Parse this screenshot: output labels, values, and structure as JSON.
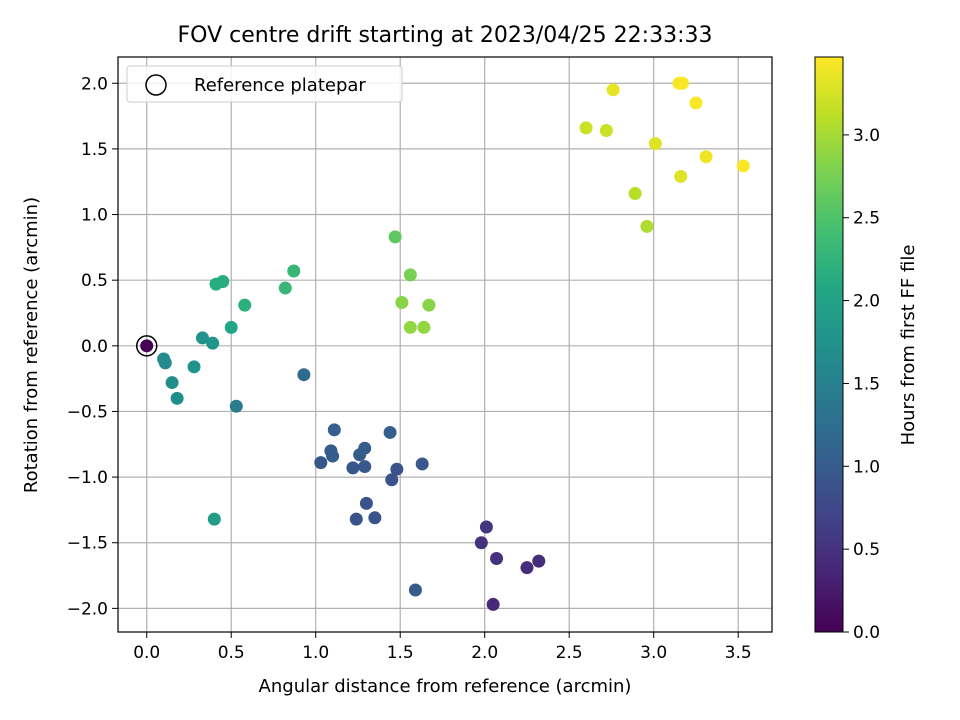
{
  "chart_data": {
    "type": "scatter",
    "title": "FOV centre drift starting at 2023/04/25 22:33:33",
    "xlabel": "Angular distance from reference (arcmin)",
    "ylabel": "Rotation from reference (arcmin)",
    "xlim": [
      -0.17,
      3.7
    ],
    "ylim": [
      -2.18,
      2.2
    ],
    "xticks": [
      "0.0",
      "0.5",
      "1.0",
      "1.5",
      "2.0",
      "2.5",
      "3.0",
      "3.5"
    ],
    "xtick_values": [
      0,
      0.5,
      1.0,
      1.5,
      2.0,
      2.5,
      3.0,
      3.5
    ],
    "yticks": [
      "2.0",
      "1.5",
      "1.0",
      "0.5",
      "0.0",
      "−0.5",
      "−1.0",
      "−1.5",
      "−2.0"
    ],
    "ytick_values": [
      2.0,
      1.5,
      1.0,
      0.5,
      0.0,
      -0.5,
      -1.0,
      -1.5,
      -2.0
    ],
    "grid": true,
    "legend": {
      "placement": "upper-left",
      "entries": [
        "Reference platepar"
      ]
    },
    "colorbar": {
      "label": "Hours from first FF file",
      "range": [
        0,
        3.47
      ],
      "ticks": [
        "0.0",
        "0.5",
        "1.0",
        "1.5",
        "2.0",
        "2.5",
        "3.0"
      ],
      "tick_values": [
        0,
        0.5,
        1.0,
        1.5,
        2.0,
        2.5,
        3.0
      ],
      "colormap": "viridis"
    },
    "reference_point": {
      "x": 0.0,
      "y": 0.0
    },
    "points": [
      {
        "x": 0.0,
        "y": 0.0,
        "c": 0.0
      },
      {
        "x": 2.05,
        "y": -1.97,
        "c": 0.4
      },
      {
        "x": 2.25,
        "y": -1.69,
        "c": 0.45
      },
      {
        "x": 2.32,
        "y": -1.64,
        "c": 0.45
      },
      {
        "x": 2.07,
        "y": -1.62,
        "c": 0.5
      },
      {
        "x": 1.98,
        "y": -1.5,
        "c": 0.5
      },
      {
        "x": 2.01,
        "y": -1.38,
        "c": 0.55
      },
      {
        "x": 1.59,
        "y": -1.86,
        "c": 1.0
      },
      {
        "x": 1.24,
        "y": -1.32,
        "c": 0.9
      },
      {
        "x": 1.35,
        "y": -1.31,
        "c": 0.9
      },
      {
        "x": 1.3,
        "y": -1.2,
        "c": 0.9
      },
      {
        "x": 1.45,
        "y": -1.02,
        "c": 0.9
      },
      {
        "x": 1.48,
        "y": -0.94,
        "c": 0.9
      },
      {
        "x": 1.63,
        "y": -0.9,
        "c": 0.95
      },
      {
        "x": 1.22,
        "y": -0.93,
        "c": 0.95
      },
      {
        "x": 1.29,
        "y": -0.92,
        "c": 0.95
      },
      {
        "x": 1.03,
        "y": -0.89,
        "c": 0.95
      },
      {
        "x": 1.09,
        "y": -0.8,
        "c": 1.0
      },
      {
        "x": 1.1,
        "y": -0.84,
        "c": 1.0
      },
      {
        "x": 1.26,
        "y": -0.83,
        "c": 1.0
      },
      {
        "x": 1.29,
        "y": -0.78,
        "c": 1.0
      },
      {
        "x": 1.11,
        "y": -0.64,
        "c": 1.05
      },
      {
        "x": 1.44,
        "y": -0.66,
        "c": 1.05
      },
      {
        "x": 0.93,
        "y": -0.22,
        "c": 1.2
      },
      {
        "x": 0.53,
        "y": -0.46,
        "c": 1.45
      },
      {
        "x": 0.1,
        "y": -0.1,
        "c": 1.65
      },
      {
        "x": 0.11,
        "y": -0.13,
        "c": 1.65
      },
      {
        "x": 0.15,
        "y": -0.28,
        "c": 1.7
      },
      {
        "x": 0.18,
        "y": -0.4,
        "c": 1.7
      },
      {
        "x": 0.28,
        "y": -0.16,
        "c": 1.75
      },
      {
        "x": 0.33,
        "y": 0.06,
        "c": 1.75
      },
      {
        "x": 0.39,
        "y": 0.02,
        "c": 1.8
      },
      {
        "x": 0.4,
        "y": -1.32,
        "c": 1.9
      },
      {
        "x": 0.5,
        "y": 0.14,
        "c": 2.05
      },
      {
        "x": 0.41,
        "y": 0.47,
        "c": 2.15
      },
      {
        "x": 0.45,
        "y": 0.49,
        "c": 2.15
      },
      {
        "x": 0.58,
        "y": 0.31,
        "c": 2.2
      },
      {
        "x": 0.82,
        "y": 0.44,
        "c": 2.3
      },
      {
        "x": 0.87,
        "y": 0.57,
        "c": 2.3
      },
      {
        "x": 1.47,
        "y": 0.83,
        "c": 2.6
      },
      {
        "x": 1.56,
        "y": 0.54,
        "c": 2.75
      },
      {
        "x": 1.51,
        "y": 0.33,
        "c": 2.85
      },
      {
        "x": 1.67,
        "y": 0.31,
        "c": 2.85
      },
      {
        "x": 1.56,
        "y": 0.14,
        "c": 2.9
      },
      {
        "x": 1.64,
        "y": 0.14,
        "c": 2.9
      },
      {
        "x": 2.96,
        "y": 0.91,
        "c": 3.05
      },
      {
        "x": 2.89,
        "y": 1.16,
        "c": 3.1
      },
      {
        "x": 2.6,
        "y": 1.66,
        "c": 3.2
      },
      {
        "x": 2.72,
        "y": 1.64,
        "c": 3.2
      },
      {
        "x": 3.01,
        "y": 1.54,
        "c": 3.3
      },
      {
        "x": 3.16,
        "y": 1.29,
        "c": 3.3
      },
      {
        "x": 2.76,
        "y": 1.95,
        "c": 3.35
      },
      {
        "x": 3.31,
        "y": 1.44,
        "c": 3.4
      },
      {
        "x": 3.53,
        "y": 1.37,
        "c": 3.45
      },
      {
        "x": 3.25,
        "y": 1.85,
        "c": 3.45
      },
      {
        "x": 3.15,
        "y": 2.0,
        "c": 3.45
      },
      {
        "x": 3.17,
        "y": 2.0,
        "c": 3.45
      }
    ]
  }
}
